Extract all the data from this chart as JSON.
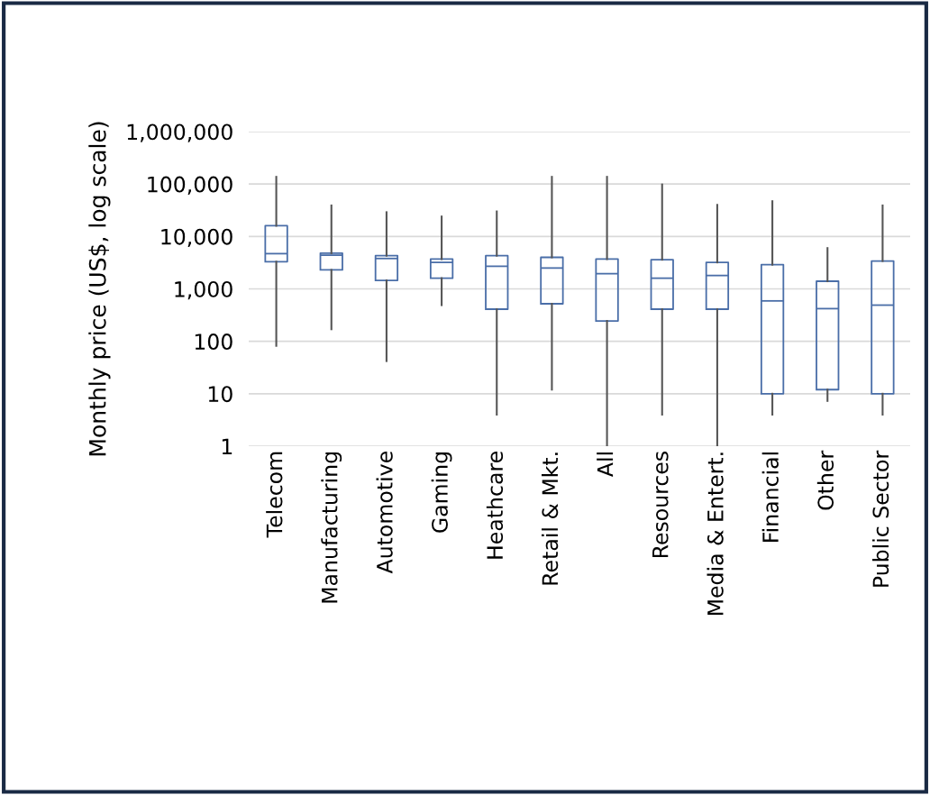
{
  "chart_data": {
    "type": "box",
    "ylabel": "Monthly price (US$, log scale)",
    "categories": [
      "Telecom",
      "Manufacturing",
      "Automotive",
      "Gaming",
      "Heathcare",
      "Retail & Mkt.",
      "All",
      "Resources",
      "Media & Entert.",
      "Financial",
      "Other",
      "Public Sector"
    ],
    "boxes": [
      {
        "low": 82,
        "q1": 3300,
        "median": 4700,
        "q3": 16000,
        "high": 137000
      },
      {
        "low": 170,
        "q1": 2300,
        "median": 4400,
        "q3": 4800,
        "high": 39000
      },
      {
        "low": 42,
        "q1": 1450,
        "median": 3800,
        "q3": 4300,
        "high": 29000
      },
      {
        "low": 490,
        "q1": 1600,
        "median": 3200,
        "q3": 3700,
        "high": 24000
      },
      {
        "low": 4,
        "q1": 410,
        "median": 2700,
        "q3": 4300,
        "high": 30000
      },
      {
        "low": 12,
        "q1": 520,
        "median": 2500,
        "q3": 4000,
        "high": 137000
      },
      {
        "low": 1,
        "q1": 245,
        "median": 1950,
        "q3": 3700,
        "high": 137000
      },
      {
        "low": 4,
        "q1": 410,
        "median": 1600,
        "q3": 3600,
        "high": 98000
      },
      {
        "low": 1,
        "q1": 410,
        "median": 1800,
        "q3": 3200,
        "high": 40000
      },
      {
        "low": 4,
        "q1": 10,
        "median": 590,
        "q3": 2900,
        "high": 47000
      },
      {
        "low": 7.3,
        "q1": 12,
        "median": 420,
        "q3": 1400,
        "high": 6000
      },
      {
        "low": 4,
        "q1": 10,
        "median": 490,
        "q3": 3400,
        "high": 39000
      }
    ],
    "color": "#4a6ea8",
    "log": true,
    "ylim": [
      1,
      1000000
    ],
    "yticks": [
      {
        "value": 1,
        "label": "1"
      },
      {
        "value": 10,
        "label": "10"
      },
      {
        "value": 100,
        "label": "100"
      },
      {
        "value": 1000,
        "label": "1,000"
      },
      {
        "value": 10000,
        "label": "10,000"
      },
      {
        "value": 100000,
        "label": "100,000"
      },
      {
        "value": 1000000,
        "label": "1,000,000"
      }
    ],
    "grid": "y"
  }
}
